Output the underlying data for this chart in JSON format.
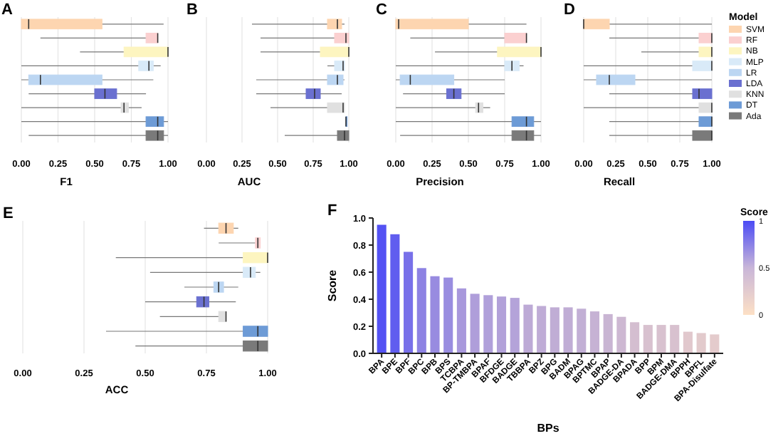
{
  "chart_data": [
    {
      "type": "box",
      "title": "A",
      "xlabel": "F1",
      "orientation": "horizontal",
      "categories": [
        null
      ],
      "xlim": [
        0,
        1
      ],
      "xticks": [
        {
          "value": 0,
          "label": "0.00"
        },
        {
          "value": 0.25,
          "label": "0.25"
        },
        {
          "value": 0.5,
          "label": "0.50"
        },
        {
          "value": 0.75,
          "label": "0.75"
        },
        {
          "value": 1,
          "label": "1.00"
        }
      ],
      "grid": true,
      "tick_labels": "x",
      "series": [
        {
          "color": "#fdd5b0",
          "boxes": [
            {
              "low": 0,
              "q1": 0,
              "median": 0.05,
              "q3": 0.55,
              "high": 0.97
            }
          ]
        },
        {
          "color": "#fbd0d0",
          "boxes": [
            {
              "low": 0.13,
              "q1": 0.85,
              "median": 0.93,
              "q3": 0.93,
              "high": 0.93
            }
          ]
        },
        {
          "color": "#fdf5c0",
          "boxes": [
            {
              "low": 0.4,
              "q1": 0.7,
              "median": 1,
              "q3": 1,
              "high": 1
            }
          ]
        },
        {
          "color": "#d9eaf8",
          "boxes": [
            {
              "low": 0,
              "q1": 0.8,
              "median": 0.87,
              "q3": 0.9,
              "high": 0.95
            }
          ]
        },
        {
          "color": "#bcd6f2",
          "boxes": [
            {
              "low": 0,
              "q1": 0.05,
              "median": 0.13,
              "q3": 0.55,
              "high": 0.9
            }
          ]
        },
        {
          "color": "#6a70d0",
          "boxes": [
            {
              "low": 0.05,
              "q1": 0.5,
              "median": 0.57,
              "q3": 0.65,
              "high": 0.85
            }
          ]
        },
        {
          "color": "#e0e0e0",
          "boxes": [
            {
              "low": 0,
              "q1": 0.68,
              "median": 0.7,
              "q3": 0.73,
              "high": 0.82
            }
          ]
        },
        {
          "color": "#6d9bd6",
          "boxes": [
            {
              "low": 0,
              "q1": 0.85,
              "median": 0.93,
              "q3": 0.97,
              "high": 1
            }
          ]
        },
        {
          "color": "#7a7a7a",
          "boxes": [
            {
              "low": 0.05,
              "q1": 0.85,
              "median": 0.93,
              "q3": 0.97,
              "high": 1
            }
          ]
        }
      ]
    },
    {
      "type": "box",
      "title": "B",
      "xlabel": "AUC",
      "orientation": "horizontal",
      "categories": [
        null
      ],
      "xlim": [
        0,
        1
      ],
      "xticks": [
        {
          "value": 0,
          "label": "0.00"
        },
        {
          "value": 0.25,
          "label": "0.25"
        },
        {
          "value": 0.5,
          "label": "0.50"
        },
        {
          "value": 0.75,
          "label": "0.75"
        },
        {
          "value": 1,
          "label": "1.00"
        }
      ],
      "grid": true,
      "tick_labels": "x",
      "series": [
        {
          "color": "#fdd5b0",
          "boxes": [
            {
              "low": 0.32,
              "q1": 0.85,
              "median": 0.92,
              "q3": 0.95,
              "high": 0.97
            }
          ]
        },
        {
          "color": "#fbd0d0",
          "boxes": [
            {
              "low": 0.38,
              "q1": 0.9,
              "median": 0.98,
              "q3": 1,
              "high": 1
            }
          ]
        },
        {
          "color": "#fdf5c0",
          "boxes": [
            {
              "low": 0.38,
              "q1": 0.8,
              "median": 1,
              "q3": 1,
              "high": 1
            }
          ]
        },
        {
          "color": "#d9eaf8",
          "boxes": [
            {
              "low": 0.85,
              "q1": 0.9,
              "median": 0.96,
              "q3": 0.97,
              "high": 0.97
            }
          ]
        },
        {
          "color": "#bcd6f2",
          "boxes": [
            {
              "low": 0.35,
              "q1": 0.85,
              "median": 0.92,
              "q3": 0.96,
              "high": 0.97
            }
          ]
        },
        {
          "color": "#6a70d0",
          "boxes": [
            {
              "low": 0.35,
              "q1": 0.7,
              "median": 0.76,
              "q3": 0.8,
              "high": 0.95
            }
          ]
        },
        {
          "color": "#e0e0e0",
          "boxes": [
            {
              "low": 0.45,
              "q1": 0.85,
              "median": 0.96,
              "q3": 0.97,
              "high": 0.97
            }
          ]
        },
        {
          "color": "#6d9bd6",
          "boxes": [
            {
              "low": 0.98,
              "q1": 0.98,
              "median": 0.98,
              "q3": 0.98,
              "high": 0.98
            }
          ]
        },
        {
          "color": "#7a7a7a",
          "boxes": [
            {
              "low": 0.55,
              "q1": 0.92,
              "median": 0.97,
              "q3": 1,
              "high": 1
            }
          ]
        }
      ]
    },
    {
      "type": "box",
      "title": "C",
      "xlabel": "Precision",
      "orientation": "horizontal",
      "categories": [
        null
      ],
      "xlim": [
        0,
        1
      ],
      "xticks": [
        {
          "value": 0,
          "label": "0.00"
        },
        {
          "value": 0.25,
          "label": "0.25"
        },
        {
          "value": 0.5,
          "label": "0.50"
        },
        {
          "value": 0.75,
          "label": "0.75"
        },
        {
          "value": 1,
          "label": "1.00"
        }
      ],
      "grid": true,
      "tick_labels": "x",
      "series": [
        {
          "color": "#fdd5b0",
          "boxes": [
            {
              "low": 0,
              "q1": 0,
              "median": 0.02,
              "q3": 0.5,
              "high": 0.9
            }
          ]
        },
        {
          "color": "#fbd0d0",
          "boxes": [
            {
              "low": 0.1,
              "q1": 0.75,
              "median": 0.9,
              "q3": 0.9,
              "high": 0.9
            }
          ]
        },
        {
          "color": "#fdf5c0",
          "boxes": [
            {
              "low": 0.27,
              "q1": 0.7,
              "median": 1,
              "q3": 1,
              "high": 1
            }
          ]
        },
        {
          "color": "#d9eaf8",
          "boxes": [
            {
              "low": 0,
              "q1": 0.75,
              "median": 0.8,
              "q3": 0.85,
              "high": 0.88
            }
          ]
        },
        {
          "color": "#bcd6f2",
          "boxes": [
            {
              "low": 0,
              "q1": 0.03,
              "median": 0.1,
              "q3": 0.4,
              "high": 0.75
            }
          ]
        },
        {
          "color": "#6a70d0",
          "boxes": [
            {
              "low": 0.05,
              "q1": 0.35,
              "median": 0.4,
              "q3": 0.45,
              "high": 0.75
            }
          ]
        },
        {
          "color": "#e0e0e0",
          "boxes": [
            {
              "low": 0,
              "q1": 0.55,
              "median": 0.57,
              "q3": 0.6,
              "high": 0.65
            }
          ]
        },
        {
          "color": "#6d9bd6",
          "boxes": [
            {
              "low": 0,
              "q1": 0.8,
              "median": 0.9,
              "q3": 0.95,
              "high": 1
            }
          ]
        },
        {
          "color": "#7a7a7a",
          "boxes": [
            {
              "low": 0.03,
              "q1": 0.8,
              "median": 0.9,
              "q3": 0.95,
              "high": 1
            }
          ]
        }
      ]
    },
    {
      "type": "box",
      "title": "D",
      "xlabel": "Recall",
      "legend_title": "Model",
      "legend": "right",
      "orientation": "horizontal",
      "categories": [
        null
      ],
      "xlim": [
        0,
        1
      ],
      "xticks": [
        {
          "value": 0,
          "label": "0.00"
        },
        {
          "value": 0.25,
          "label": "0.25"
        },
        {
          "value": 0.5,
          "label": "0.50"
        },
        {
          "value": 0.75,
          "label": "0.75"
        },
        {
          "value": 1,
          "label": "1.00"
        }
      ],
      "grid": true,
      "tick_labels": "x",
      "series": [
        {
          "name": "SVM",
          "color": "#fdd5b0",
          "boxes": [
            {
              "low": 0,
              "q1": 0,
              "median": 0,
              "q3": 0.2,
              "high": 1
            }
          ]
        },
        {
          "name": "RF",
          "color": "#fbd0d0",
          "boxes": [
            {
              "low": 0.2,
              "q1": 0.9,
              "median": 1,
              "q3": 1,
              "high": 1
            }
          ]
        },
        {
          "name": "NB",
          "color": "#fdf5c0",
          "boxes": [
            {
              "low": 0.45,
              "q1": 0.9,
              "median": 1,
              "q3": 1,
              "high": 1
            }
          ]
        },
        {
          "name": "MLP",
          "color": "#d9eaf8",
          "boxes": [
            {
              "low": 0,
              "q1": 0.85,
              "median": 1,
              "q3": 1,
              "high": 1
            }
          ]
        },
        {
          "name": "LR",
          "color": "#bcd6f2",
          "boxes": [
            {
              "low": 0,
              "q1": 0.1,
              "median": 0.2,
              "q3": 0.4,
              "high": 1
            }
          ]
        },
        {
          "name": "LDA",
          "color": "#6a70d0",
          "boxes": [
            {
              "low": 0.2,
              "q1": 0.85,
              "median": 0.9,
              "q3": 1,
              "high": 1
            }
          ]
        },
        {
          "name": "KNN",
          "color": "#e0e0e0",
          "boxes": [
            {
              "low": 0,
              "q1": 0.9,
              "median": 1,
              "q3": 1,
              "high": 1
            }
          ]
        },
        {
          "name": "DT",
          "color": "#6d9bd6",
          "boxes": [
            {
              "low": 0.2,
              "q1": 0.9,
              "median": 1,
              "q3": 1,
              "high": 1
            }
          ]
        },
        {
          "name": "Ada",
          "color": "#7a7a7a",
          "boxes": [
            {
              "low": 0.2,
              "q1": 0.85,
              "median": 1,
              "q3": 1,
              "high": 1
            }
          ]
        }
      ]
    },
    {
      "type": "box",
      "title": "E",
      "xlabel": "ACC",
      "orientation": "horizontal",
      "categories": [
        null
      ],
      "xlim": [
        0,
        1
      ],
      "xticks": [
        {
          "value": 0,
          "label": "0.00"
        },
        {
          "value": 0.25,
          "label": "0.25"
        },
        {
          "value": 0.5,
          "label": "0.50"
        },
        {
          "value": 0.75,
          "label": "0.75"
        },
        {
          "value": 1,
          "label": "1.00"
        }
      ],
      "grid": true,
      "tick_labels": "x",
      "series": [
        {
          "color": "#fdd5b0",
          "boxes": [
            {
              "low": 0.74,
              "q1": 0.8,
              "median": 0.83,
              "q3": 0.86,
              "high": 0.88
            }
          ]
        },
        {
          "color": "#fbd0d0",
          "boxes": [
            {
              "low": 0.8,
              "q1": 0.95,
              "median": 0.96,
              "q3": 0.97,
              "high": 0.97
            }
          ]
        },
        {
          "color": "#fdf5c0",
          "boxes": [
            {
              "low": 0.38,
              "q1": 0.9,
              "median": 1,
              "q3": 1,
              "high": 1
            }
          ]
        },
        {
          "color": "#d9eaf8",
          "boxes": [
            {
              "low": 0.52,
              "q1": 0.9,
              "median": 0.93,
              "q3": 0.95,
              "high": 0.97
            }
          ]
        },
        {
          "color": "#bcd6f2",
          "boxes": [
            {
              "low": 0.66,
              "q1": 0.78,
              "median": 0.8,
              "q3": 0.82,
              "high": 0.88
            }
          ]
        },
        {
          "color": "#6a70d0",
          "boxes": [
            {
              "low": 0.5,
              "q1": 0.71,
              "median": 0.74,
              "q3": 0.76,
              "high": 0.87
            }
          ]
        },
        {
          "color": "#e0e0e0",
          "boxes": [
            {
              "low": 0.56,
              "q1": 0.8,
              "median": 0.83,
              "q3": 0.83,
              "high": 0.83
            }
          ]
        },
        {
          "color": "#6d9bd6",
          "boxes": [
            {
              "low": 0.34,
              "q1": 0.9,
              "median": 0.96,
              "q3": 1,
              "high": 1
            }
          ]
        },
        {
          "color": "#7a7a7a",
          "boxes": [
            {
              "low": 0.46,
              "q1": 0.9,
              "median": 0.96,
              "q3": 1,
              "high": 1
            }
          ]
        }
      ]
    },
    {
      "type": "bar",
      "title": "F",
      "xlabel": "BPs",
      "ylabel": "Score",
      "clabel": "Score",
      "clim": [
        0,
        1
      ],
      "cticks": [
        0,
        0.5,
        1
      ],
      "ylim": [
        0,
        1
      ],
      "yticks": [
        {
          "value": 0,
          "label": "0.0"
        },
        {
          "value": 0.2,
          "label": "0.2"
        },
        {
          "value": 0.4,
          "label": "0.4"
        },
        {
          "value": 0.6,
          "label": "0.6"
        },
        {
          "value": 0.8,
          "label": "0.8"
        },
        {
          "value": 1,
          "label": "1.0"
        }
      ],
      "categories": [
        "BPA",
        "BPE",
        "BPF",
        "BPC",
        "BPB",
        "BPS",
        "TCBPA",
        "BP-TMBPA",
        "BPAF",
        "BFDGE",
        "BADGE",
        "TBBPA",
        "BPZ",
        "BPG",
        "BADM",
        "BPAG",
        "BPTMC",
        "BPAP",
        "BADGE-DA",
        "BPADA",
        "BPP",
        "BPM",
        "BADGE-DMA",
        "BPPH",
        "BPFL",
        "BPA-Disulfate"
      ],
      "values": [
        0.95,
        0.88,
        0.75,
        0.63,
        0.57,
        0.56,
        0.48,
        0.44,
        0.43,
        0.42,
        0.41,
        0.36,
        0.35,
        0.34,
        0.34,
        0.33,
        0.31,
        0.29,
        0.27,
        0.23,
        0.21,
        0.21,
        0.21,
        0.16,
        0.15,
        0.14
      ],
      "colors": [
        "#5452f3",
        "#605def",
        "#7870e9",
        "#8d82e3",
        "#988be0",
        "#998de0",
        "#a898dc",
        "#af9eda",
        "#b0a0da",
        "#b2a1d9",
        "#b4a3d9",
        "#bdaad6",
        "#bfacd6",
        "#c0add5",
        "#c0add5",
        "#c2afd5",
        "#c6b2d4",
        "#c9b5d3",
        "#cdb8d2",
        "#d4bed0",
        "#d8c1cf",
        "#d8c1cf",
        "#d8c1cf",
        "#e1c8cd",
        "#e2cacc",
        "#e4cbcc"
      ]
    }
  ]
}
